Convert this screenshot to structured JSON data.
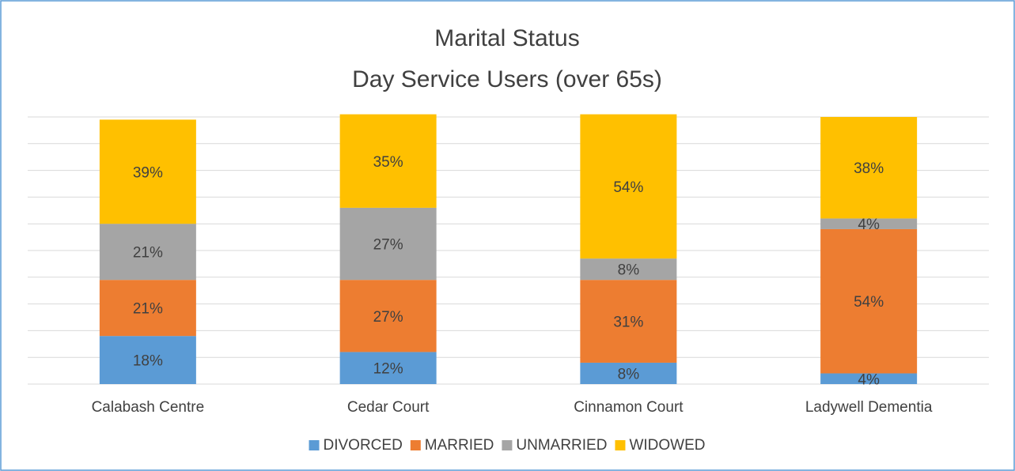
{
  "chart_data": {
    "type": "stacked-bar",
    "title": "Marital Status",
    "subtitle": "Day Service Users (over 65s)",
    "categories": [
      "Calabash Centre",
      "Cedar Court",
      "Cinnamon Court",
      "Ladywell Dementia"
    ],
    "series": [
      {
        "name": "DIVORCED",
        "color": "#5b9bd5",
        "values": [
          18,
          12,
          8,
          4
        ],
        "value_labels": [
          "18%",
          "12%",
          "8%",
          "4%"
        ]
      },
      {
        "name": "MARRIED",
        "color": "#ed7d31",
        "values": [
          21,
          27,
          31,
          54
        ],
        "value_labels": [
          "21%",
          "27%",
          "31%",
          "54%"
        ]
      },
      {
        "name": "UNMARRIED",
        "color": "#a5a5a5",
        "values": [
          21,
          27,
          8,
          4
        ],
        "value_labels": [
          "21%",
          "27%",
          "8%",
          "4%"
        ]
      },
      {
        "name": "WIDOWED",
        "color": "#ffc000",
        "values": [
          39,
          35,
          54,
          38
        ],
        "value_labels": [
          "39%",
          "35%",
          "54%",
          "38%"
        ]
      }
    ],
    "ylim": [
      0,
      100
    ],
    "yticks": [
      0,
      10,
      20,
      30,
      40,
      50,
      60,
      70,
      80,
      90,
      100
    ],
    "grid": true,
    "legend": "bottom"
  }
}
